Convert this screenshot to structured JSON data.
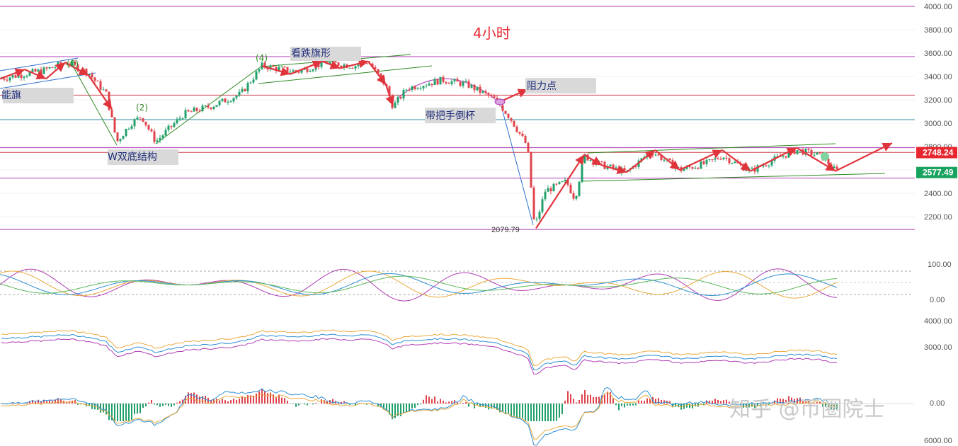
{
  "chart_data": {
    "type": "candlestick",
    "title": "4小时",
    "price_axis": {
      "ylim": [
        2079.79,
        4000
      ],
      "ticks": [
        "4000.00",
        "3800.00",
        "3600.00",
        "3400.00",
        "3200.00",
        "3000.00",
        "2800.00",
        "2600.00",
        "2400.00",
        "2200.00"
      ]
    },
    "price_badges": [
      {
        "label": "2748.24",
        "value": 2748.24,
        "color": "#e8262f"
      },
      {
        "label": "2577.49",
        "value": 2577.49,
        "color": "#19a35f"
      }
    ],
    "levels": [
      {
        "value": 4000,
        "color": "#b03cb5"
      },
      {
        "value": 3570,
        "color": "#b03cb5"
      },
      {
        "value": 3240,
        "color": "#d1424f"
      },
      {
        "value": 3030,
        "color": "#2b8fa3"
      },
      {
        "value": 2790,
        "color": "#b03cb5"
      },
      {
        "value": 2750,
        "color": "#d1424f"
      },
      {
        "value": 2530,
        "color": "#b03cb5"
      },
      {
        "value": 2090,
        "color": "#b03cb5"
      }
    ],
    "annotations": {
      "bear_flag_left": "能旗",
      "w_bottom": "W双底结构",
      "bear_flag": "看跌旗形",
      "resistance": "阻力点",
      "cup_handle": "带把手倒杯",
      "wave2": "(2)",
      "wave4": "(4)",
      "wave0": "(0)",
      "low_label": "2079.79"
    },
    "oscillator": {
      "ticks": [
        "100.00",
        "0.00"
      ],
      "ylim": [
        0,
        100
      ]
    },
    "ma_panel": {
      "ticks": [
        "4000.00",
        "3000.00"
      ]
    },
    "macd_panel": {
      "ticks": [
        "0.00",
        "6000.00"
      ]
    },
    "path": [
      [
        0,
        3380
      ],
      [
        60,
        3450
      ],
      [
        95,
        3520
      ],
      [
        125,
        3430
      ],
      [
        150,
        3250
      ],
      [
        165,
        2840
      ],
      [
        185,
        3000
      ],
      [
        200,
        3060
      ],
      [
        220,
        2840
      ],
      [
        260,
        3080
      ],
      [
        300,
        3150
      ],
      [
        340,
        3250
      ],
      [
        370,
        3490
      ],
      [
        420,
        3440
      ],
      [
        460,
        3520
      ],
      [
        500,
        3490
      ],
      [
        520,
        3530
      ],
      [
        545,
        3320
      ],
      [
        555,
        3140
      ],
      [
        575,
        3300
      ],
      [
        625,
        3370
      ],
      [
        660,
        3330
      ],
      [
        700,
        3200
      ],
      [
        720,
        3050
      ],
      [
        745,
        2800
      ],
      [
        755,
        2100
      ],
      [
        770,
        2420
      ],
      [
        800,
        2500
      ],
      [
        812,
        2350
      ],
      [
        825,
        2720
      ],
      [
        850,
        2640
      ],
      [
        885,
        2580
      ],
      [
        920,
        2760
      ],
      [
        960,
        2600
      ],
      [
        1000,
        2660
      ],
      [
        1020,
        2720
      ],
      [
        1060,
        2590
      ],
      [
        1090,
        2680
      ],
      [
        1125,
        2770
      ],
      [
        1160,
        2720
      ],
      [
        1180,
        2590
      ]
    ]
  },
  "watermark": "知乎 @币圈院士"
}
